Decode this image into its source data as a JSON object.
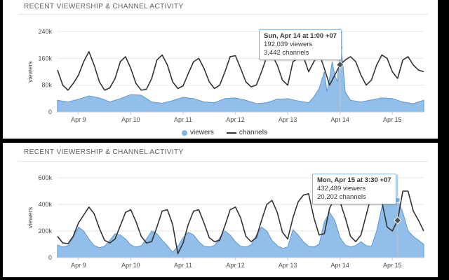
{
  "panels": [
    {
      "title": "RECENT VIEWERSHIP & CHANNEL ACTIVITY",
      "tooltip": {
        "head": "Sun, Apr 14 at 1:00 +07",
        "line1": "192,039 viewers",
        "line2": "3,442 channels"
      },
      "legend": {
        "viewers": "viewers",
        "channels": "channels"
      }
    },
    {
      "title": "RECENT VIEWERSHIP & CHANNEL ACTIVITY",
      "tooltip": {
        "head": "Mon, Apr 15 at 3:30 +07",
        "line1": "432,489 viewers",
        "line2": "20,202 channels"
      }
    }
  ],
  "chart_data": [
    {
      "type": "area",
      "ylabel": "viewers",
      "yticks": [
        "0",
        "80k",
        "160k",
        "240k"
      ],
      "ylim": [
        0,
        240000
      ],
      "xlim": [
        8.6,
        15.6
      ],
      "xticks": [
        "Apr 9",
        "Apr 10",
        "Apr 11",
        "Apr 12",
        "Apr 13",
        "Apr 14",
        "Apr 15"
      ],
      "xtick_values": [
        9,
        10,
        11,
        12,
        13,
        14,
        15
      ],
      "grid": true,
      "legend_position": "bottom-center",
      "series": [
        {
          "name": "viewers",
          "kind": "area",
          "color": "#7fb3e6",
          "x": [
            8.6,
            8.8,
            9.0,
            9.2,
            9.4,
            9.6,
            9.8,
            10.0,
            10.2,
            10.4,
            10.6,
            10.8,
            11.0,
            11.2,
            11.4,
            11.6,
            11.8,
            12.0,
            12.2,
            12.4,
            12.6,
            12.8,
            13.0,
            13.2,
            13.4,
            13.5,
            13.6,
            13.7,
            13.75,
            13.8,
            13.85,
            13.9,
            13.95,
            14.0,
            14.05,
            14.1,
            14.2,
            14.4,
            14.6,
            14.8,
            15.0,
            15.2,
            15.4,
            15.6
          ],
          "y": [
            35000,
            30000,
            38000,
            48000,
            42000,
            30000,
            40000,
            52000,
            50000,
            30000,
            26000,
            34000,
            44000,
            40000,
            30000,
            28000,
            40000,
            42000,
            35000,
            25000,
            28000,
            38000,
            40000,
            33000,
            28000,
            45000,
            70000,
            120000,
            60000,
            100000,
            150000,
            110000,
            90000,
            192039,
            150000,
            60000,
            35000,
            30000,
            36000,
            42000,
            40000,
            30000,
            25000,
            35000
          ]
        },
        {
          "name": "channels",
          "kind": "line",
          "color": "#333333",
          "x": [
            8.6,
            8.7,
            8.8,
            8.9,
            9.0,
            9.1,
            9.2,
            9.3,
            9.4,
            9.5,
            9.6,
            9.7,
            9.8,
            9.9,
            10.0,
            10.1,
            10.2,
            10.3,
            10.4,
            10.5,
            10.6,
            10.7,
            10.8,
            10.9,
            11.0,
            11.1,
            11.2,
            11.3,
            11.4,
            11.5,
            11.6,
            11.7,
            11.8,
            11.9,
            12.0,
            12.1,
            12.2,
            12.3,
            12.4,
            12.5,
            12.6,
            12.7,
            12.8,
            12.9,
            13.0,
            13.1,
            13.2,
            13.3,
            13.4,
            13.5,
            13.6,
            13.7,
            13.8,
            13.9,
            14.0,
            14.1,
            14.2,
            14.3,
            14.4,
            14.5,
            14.6,
            14.7,
            14.8,
            14.9,
            15.0,
            15.1,
            15.2,
            15.3,
            15.4,
            15.5,
            15.6
          ],
          "y": [
            125000,
            80000,
            65000,
            85000,
            110000,
            150000,
            180000,
            140000,
            90000,
            65000,
            72000,
            100000,
            150000,
            165000,
            130000,
            85000,
            65000,
            68000,
            100000,
            155000,
            170000,
            140000,
            90000,
            70000,
            78000,
            115000,
            150000,
            160000,
            130000,
            90000,
            70000,
            80000,
            120000,
            165000,
            168000,
            130000,
            90000,
            75000,
            80000,
            120000,
            165000,
            170000,
            140000,
            95000,
            80000,
            150000,
            160000,
            165000,
            120000,
            150000,
            175000,
            130000,
            80000,
            110000,
            141000,
            155000,
            165000,
            150000,
            110000,
            80000,
            95000,
            140000,
            170000,
            160000,
            120000,
            100000,
            155000,
            165000,
            140000,
            125000,
            120000
          ]
        }
      ]
    },
    {
      "type": "area",
      "ylabel": "viewers",
      "yticks": [
        "0",
        "200k",
        "400k",
        "600k"
      ],
      "ylim": [
        0,
        600000
      ],
      "xlim": [
        8.6,
        15.6
      ],
      "xticks": [
        "Apr 9",
        "Apr 10",
        "Apr 11",
        "Apr 12",
        "Apr 13",
        "Apr 14",
        "Apr 15"
      ],
      "xtick_values": [
        9,
        10,
        11,
        12,
        13,
        14,
        15
      ],
      "grid": true,
      "series": [
        {
          "name": "viewers",
          "kind": "area",
          "color": "#7fb3e6",
          "x": [
            8.6,
            8.7,
            8.8,
            8.9,
            9.0,
            9.1,
            9.2,
            9.3,
            9.4,
            9.5,
            9.6,
            9.7,
            9.8,
            9.9,
            10.0,
            10.1,
            10.2,
            10.3,
            10.4,
            10.5,
            10.6,
            10.7,
            10.8,
            10.9,
            11.0,
            11.1,
            11.2,
            11.3,
            11.4,
            11.5,
            11.6,
            11.7,
            11.8,
            11.9,
            12.0,
            12.1,
            12.2,
            12.3,
            12.4,
            12.5,
            12.6,
            12.7,
            12.8,
            12.9,
            13.0,
            13.1,
            13.2,
            13.3,
            13.4,
            13.5,
            13.6,
            13.7,
            13.8,
            13.9,
            14.0,
            14.1,
            14.2,
            14.3,
            14.4,
            14.5,
            14.6,
            14.7,
            14.8,
            14.9,
            15.0,
            15.1,
            15.2,
            15.3,
            15.4,
            15.5,
            15.6
          ],
          "y": [
            95000,
            80000,
            90000,
            150000,
            230000,
            200000,
            140000,
            90000,
            75000,
            85000,
            130000,
            180000,
            170000,
            140000,
            95000,
            80000,
            88000,
            140000,
            200000,
            180000,
            130000,
            90000,
            40000,
            85000,
            150000,
            190000,
            170000,
            120000,
            85000,
            80000,
            90000,
            150000,
            200000,
            170000,
            120000,
            85000,
            80000,
            95000,
            170000,
            230000,
            200000,
            130000,
            90000,
            70000,
            80000,
            210000,
            170000,
            120000,
            85000,
            80000,
            100000,
            270000,
            340000,
            280000,
            150000,
            95000,
            80000,
            90000,
            120000,
            90000,
            85000,
            200000,
            380000,
            480000,
            420000,
            432489,
            340000,
            200000,
            160000,
            130000,
            100000
          ]
        },
        {
          "name": "channels",
          "kind": "line",
          "color": "#333333",
          "x": [
            8.6,
            8.7,
            8.8,
            8.9,
            9.0,
            9.1,
            9.2,
            9.3,
            9.4,
            9.5,
            9.6,
            9.7,
            9.8,
            9.9,
            10.0,
            10.1,
            10.2,
            10.3,
            10.4,
            10.5,
            10.6,
            10.7,
            10.8,
            10.9,
            11.0,
            11.1,
            11.2,
            11.3,
            11.4,
            11.5,
            11.6,
            11.7,
            11.8,
            11.9,
            12.0,
            12.1,
            12.2,
            12.3,
            12.4,
            12.5,
            12.6,
            12.7,
            12.8,
            12.9,
            13.0,
            13.1,
            13.2,
            13.3,
            13.4,
            13.5,
            13.6,
            13.7,
            13.8,
            13.9,
            14.0,
            14.1,
            14.2,
            14.3,
            14.4,
            14.5,
            14.6,
            14.7,
            14.8,
            14.9,
            15.0,
            15.1,
            15.2,
            15.3,
            15.4,
            15.5,
            15.6
          ],
          "y": [
            160000,
            110000,
            105000,
            160000,
            260000,
            320000,
            380000,
            330000,
            220000,
            130000,
            110000,
            140000,
            240000,
            340000,
            360000,
            270000,
            160000,
            110000,
            120000,
            230000,
            350000,
            360000,
            250000,
            30000,
            110000,
            250000,
            350000,
            360000,
            260000,
            150000,
            120000,
            130000,
            240000,
            360000,
            380000,
            300000,
            160000,
            120000,
            150000,
            280000,
            400000,
            430000,
            340000,
            190000,
            140000,
            300000,
            420000,
            470000,
            480000,
            300000,
            170000,
            180000,
            370000,
            450000,
            420000,
            300000,
            160000,
            120000,
            170000,
            320000,
            470000,
            500000,
            420000,
            230000,
            200000,
            280000,
            500000,
            500000,
            350000,
            280000,
            200000
          ]
        }
      ]
    }
  ]
}
